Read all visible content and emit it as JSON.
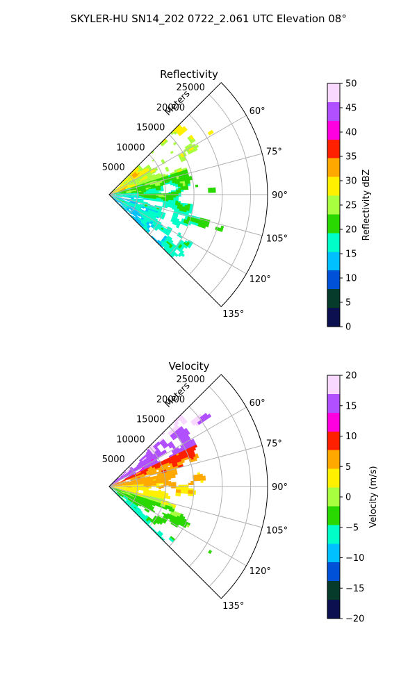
{
  "figure": {
    "title": "SKYLER-HU  SN14_202  0722_2.061 UTC Elevation 08°"
  },
  "chart_data": [
    {
      "type": "heatmap",
      "title": "Reflectivity",
      "projection": "polar-sector",
      "angle_range_deg": [
        45,
        135
      ],
      "angle_ticks": [
        "60°",
        "75°",
        "90°",
        "105°",
        "120°",
        "135°"
      ],
      "range_axis_label": "Meters",
      "range_ticks": [
        "5000",
        "10000",
        "15000",
        "20000",
        "25000"
      ],
      "range_max": 28000,
      "grid": true,
      "colorbar": {
        "label": "Reflectivity dBZ",
        "min": 0,
        "max": 50,
        "ticks": [
          "0",
          "5",
          "10",
          "15",
          "20",
          "25",
          "30",
          "35",
          "40",
          "45",
          "50"
        ],
        "colors": [
          "#0d1050",
          "#063a2a",
          "#0050d8",
          "#00c0ff",
          "#00ffc8",
          "#28d800",
          "#a8ff40",
          "#fff000",
          "#ffa800",
          "#ff2000",
          "#ff00e0",
          "#b050ff",
          "#f8d8ff"
        ]
      }
    },
    {
      "type": "heatmap",
      "title": "Velocity",
      "projection": "polar-sector",
      "angle_range_deg": [
        45,
        135
      ],
      "angle_ticks": [
        "60°",
        "75°",
        "90°",
        "105°",
        "120°",
        "135°"
      ],
      "range_axis_label": "Meters",
      "range_ticks": [
        "5000",
        "10000",
        "15000",
        "20000",
        "25000"
      ],
      "range_max": 28000,
      "grid": true,
      "colorbar": {
        "label": "Velocity (m/s)",
        "min": -20,
        "max": 20,
        "ticks": [
          "−20",
          "−15",
          "−10",
          "−5",
          "0",
          "5",
          "10",
          "15",
          "20"
        ],
        "colors": [
          "#0d1050",
          "#063a2a",
          "#0050d8",
          "#00c0ff",
          "#00ffc8",
          "#28d800",
          "#a8ff40",
          "#fff000",
          "#ffa800",
          "#ff2000",
          "#ff00e0",
          "#b050ff",
          "#f8d8ff"
        ]
      }
    }
  ]
}
